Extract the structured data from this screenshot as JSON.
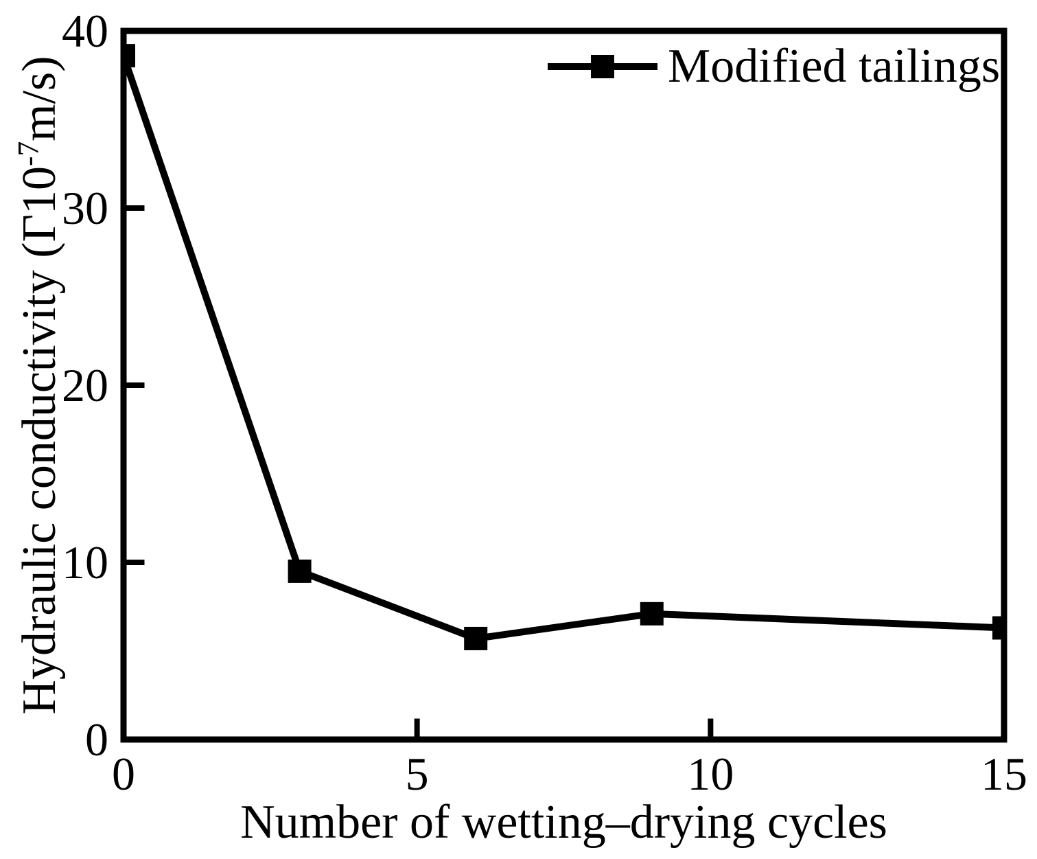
{
  "figure": {
    "background_color": "#ffffff",
    "line_color": "#000000"
  },
  "legend": {
    "position": "top-right-inside",
    "entries": [
      {
        "label": "Modified tailings",
        "marker": "filled-square",
        "color": "#000000"
      }
    ]
  },
  "chart_data": {
    "type": "line",
    "title": "",
    "xlabel": "Number of wetting–drying cycles",
    "ylabel": "Hydraulic conductivity (Γ10⁻⁷m/s)",
    "ylabel_parts": {
      "prefix": "Hydraulic conductivity (Γ10",
      "superscript": "-7",
      "suffix": "m/s)"
    },
    "xlim": [
      0,
      15
    ],
    "ylim": [
      0,
      40
    ],
    "xticks": [
      0,
      5,
      10,
      15
    ],
    "yticks": [
      0,
      10,
      20,
      30,
      40
    ],
    "grid": false,
    "legend_position": "top-right-inside",
    "series": [
      {
        "name": "Modified tailings",
        "color": "#000000",
        "marker": "square",
        "x": [
          0,
          3,
          6,
          9,
          15
        ],
        "y": [
          38.6,
          9.5,
          5.7,
          7.1,
          6.3
        ]
      }
    ]
  }
}
